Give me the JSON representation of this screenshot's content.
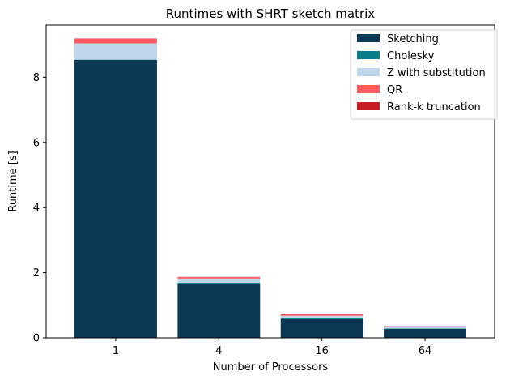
{
  "chart_data": {
    "type": "bar",
    "stacked": true,
    "title": "Runtimes with SHRT sketch matrix",
    "xlabel": "Number of Processors",
    "ylabel": "Runtime [s]",
    "categories": [
      "1",
      "4",
      "16",
      "64"
    ],
    "ylim": [
      0,
      9.6
    ],
    "yticks": [
      "0",
      "2",
      "4",
      "6",
      "8"
    ],
    "legend_position": "top-right",
    "series": [
      {
        "name": "Sketching",
        "color": "#0b3954",
        "values": [
          8.53,
          1.65,
          0.58,
          0.28
        ]
      },
      {
        "name": "Cholesky",
        "color": "#087e8b",
        "values": [
          0.01,
          0.04,
          0.02,
          0.01
        ]
      },
      {
        "name": "Z with substitution",
        "color": "#bfd7ea",
        "values": [
          0.5,
          0.13,
          0.08,
          0.05
        ]
      },
      {
        "name": "QR",
        "color": "#ff5a5f",
        "values": [
          0.14,
          0.04,
          0.03,
          0.02
        ]
      },
      {
        "name": "Rank-k truncation",
        "color": "#c81d25",
        "values": [
          0.01,
          0.01,
          0.01,
          0.01
        ]
      }
    ]
  }
}
